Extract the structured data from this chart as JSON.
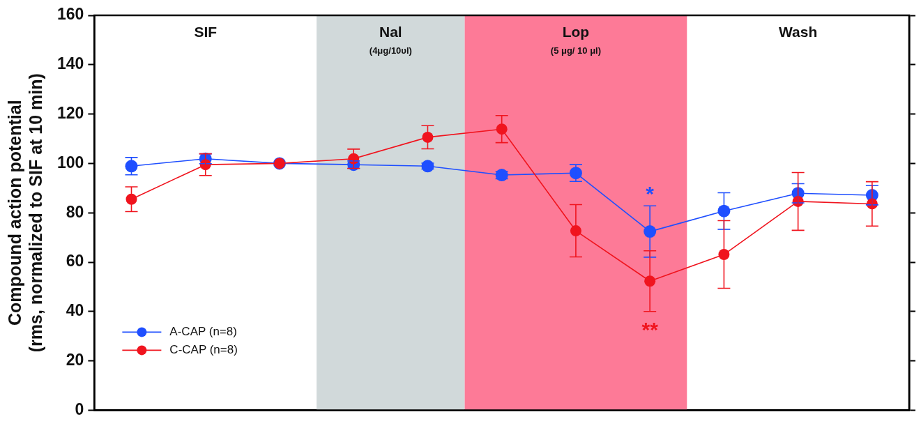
{
  "chart_data": {
    "type": "line",
    "ylabel": "Compound action potential\n(rms, normalized to SIF at 10 min)",
    "categories": [
      null,
      null,
      null,
      null,
      null,
      null,
      null,
      null,
      null,
      null,
      null
    ],
    "ylim": [
      0,
      160
    ],
    "yticks": [
      0,
      20,
      40,
      60,
      80,
      100,
      120,
      140,
      160
    ],
    "series": [
      {
        "name": "A-CAP (n=8)",
        "color": "#1f4fff",
        "values": [
          98.9,
          101.9,
          100,
          99.5,
          98.9,
          95.3,
          96.1,
          72.4,
          80.7,
          87.9,
          87.1
        ],
        "errors": [
          3.5,
          2,
          null,
          1.5,
          1.2,
          1.5,
          3.4,
          10.4,
          7.4,
          3.9,
          3.9
        ]
      },
      {
        "name": "C-CAP (n=8)",
        "color": "#f0141e",
        "values": [
          85.5,
          99.5,
          100,
          101.9,
          110.6,
          113.9,
          72.7,
          52.3,
          63.1,
          84.6,
          83.6
        ],
        "errors": [
          5,
          4.4,
          null,
          3.9,
          4.7,
          5.5,
          10.6,
          12.3,
          13.7,
          11.7,
          9
        ]
      }
    ],
    "annotations": [
      "SIF",
      "Nal\n(4μg/10υl)",
      "Lop\n(5 μg/ 10 μl)",
      "Wash",
      "*",
      "**"
    ],
    "legend": "bottom left",
    "marker": "circle",
    "line_style": "solid",
    "grid": false
  }
}
